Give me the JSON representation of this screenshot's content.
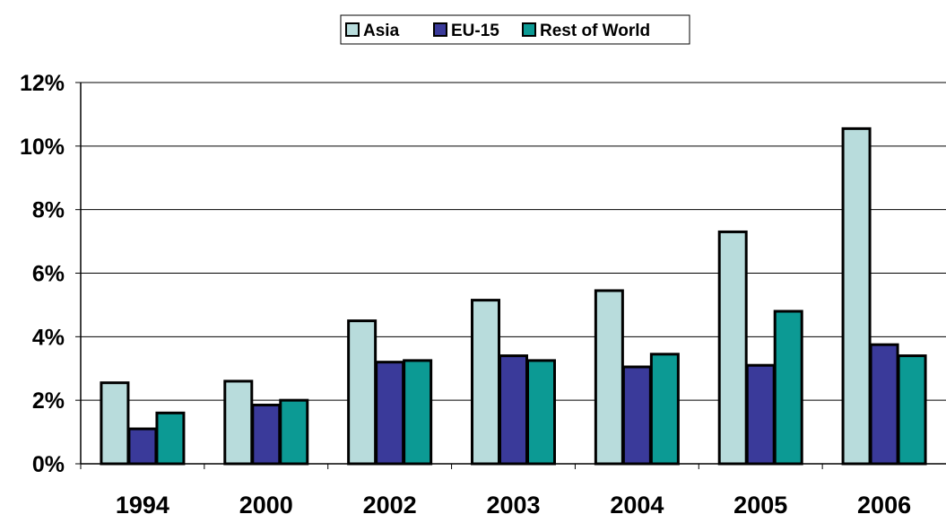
{
  "chart_data": {
    "type": "bar",
    "title": "",
    "xlabel": "",
    "ylabel": "",
    "categories": [
      "1994",
      "2000",
      "2002",
      "2003",
      "2004",
      "2005",
      "2006"
    ],
    "series": [
      {
        "name": "Asia",
        "color": "#b8dcdc",
        "values": [
          2.55,
          2.6,
          4.5,
          5.15,
          5.45,
          7.3,
          10.55
        ]
      },
      {
        "name": "EU-15",
        "color": "#3a3a9a",
        "values": [
          1.1,
          1.85,
          3.2,
          3.4,
          3.05,
          3.1,
          3.75
        ]
      },
      {
        "name": "Rest of World",
        "color": "#0c9a94",
        "values": [
          1.6,
          2.0,
          3.25,
          3.25,
          3.45,
          4.8,
          3.4
        ]
      }
    ],
    "ylim": [
      0,
      12
    ],
    "yticks": [
      0,
      2,
      4,
      6,
      8,
      10,
      12
    ],
    "ytick_labels": [
      "0%",
      "2%",
      "4%",
      "6%",
      "8%",
      "10%",
      "12%"
    ],
    "grid": true,
    "legend_position": "top-center"
  }
}
